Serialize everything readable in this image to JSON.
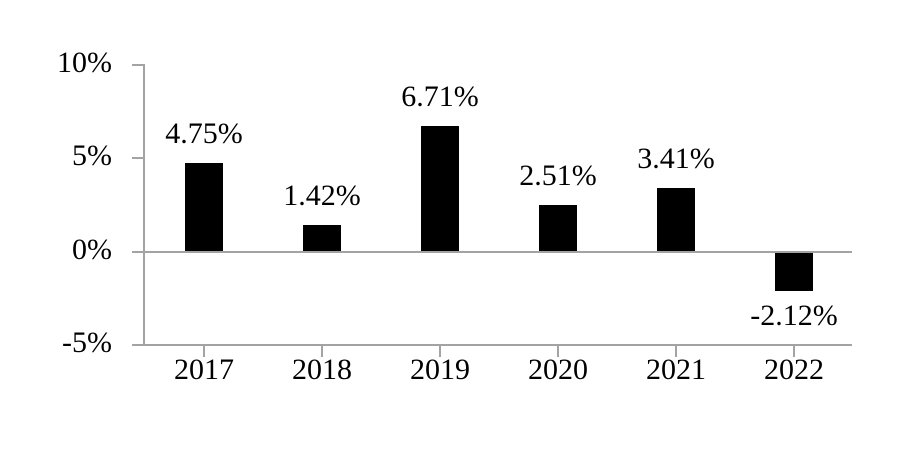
{
  "chart_data": {
    "type": "bar",
    "categories": [
      "2017",
      "2018",
      "2019",
      "2020",
      "2021",
      "2022"
    ],
    "values": [
      4.75,
      1.42,
      6.71,
      2.51,
      3.41,
      -2.12
    ],
    "value_labels": [
      "4.75%",
      "1.42%",
      "6.71%",
      "2.51%",
      "3.41%",
      "-2.12%"
    ],
    "title": "",
    "xlabel": "",
    "ylabel": "",
    "ylim": [
      -5,
      10
    ],
    "y_ticks": [
      {
        "value": 10,
        "label": "10%"
      },
      {
        "value": 5,
        "label": "5%"
      },
      {
        "value": 0,
        "label": "0%"
      },
      {
        "value": -5,
        "label": "-5%"
      }
    ],
    "grid": "zero-baseline-only",
    "legend": "none",
    "bar_color": "#000000",
    "axis_color": "#a3a3a3",
    "text_color": "#000000",
    "background_color": "#ffffff"
  }
}
